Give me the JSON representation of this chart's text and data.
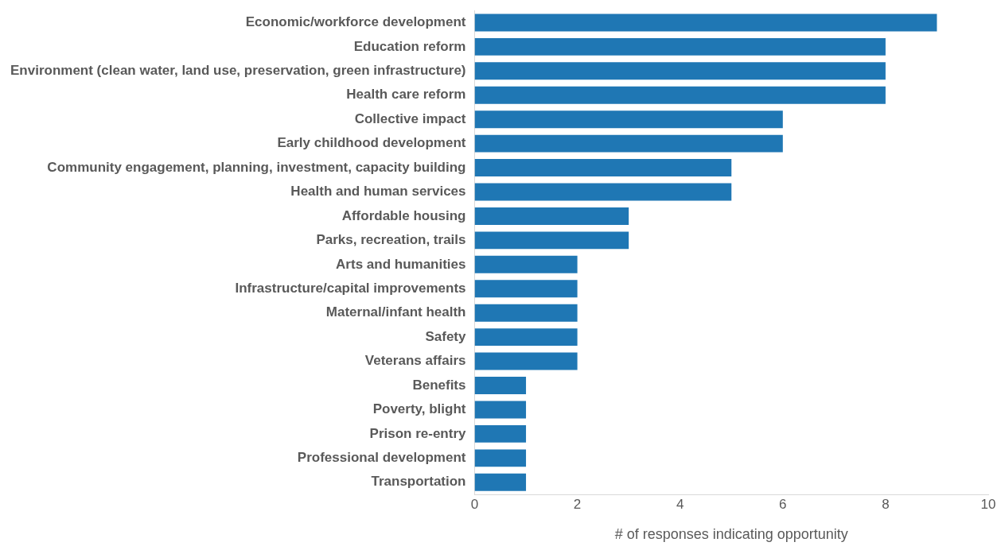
{
  "chart_data": {
    "type": "bar",
    "orientation": "horizontal",
    "xlabel": "# of responses indicating opportunity",
    "categories": [
      "Economic/workforce development",
      "Education reform",
      "Environment (clean water, land use, preservation, green infrastructure)",
      "Health care reform",
      "Collective impact",
      "Early childhood development",
      "Community engagement, planning, investment, capacity building",
      "Health and human services",
      "Affordable housing",
      "Parks, recreation, trails",
      "Arts and humanities",
      "Infrastructure/capital improvements",
      "Maternal/infant health",
      "Safety",
      "Veterans affairs",
      "Benefits",
      "Poverty, blight",
      "Prison re-entry",
      "Professional development",
      "Transportation"
    ],
    "values": [
      9,
      8,
      8,
      8,
      6,
      6,
      5,
      5,
      3,
      3,
      2,
      2,
      2,
      2,
      2,
      1,
      1,
      1,
      1,
      1
    ],
    "color": "#1f77b4",
    "xlim": [
      0,
      10
    ],
    "xticks": [
      0,
      2,
      4,
      6,
      8,
      10
    ],
    "grid": false,
    "legend": false
  }
}
